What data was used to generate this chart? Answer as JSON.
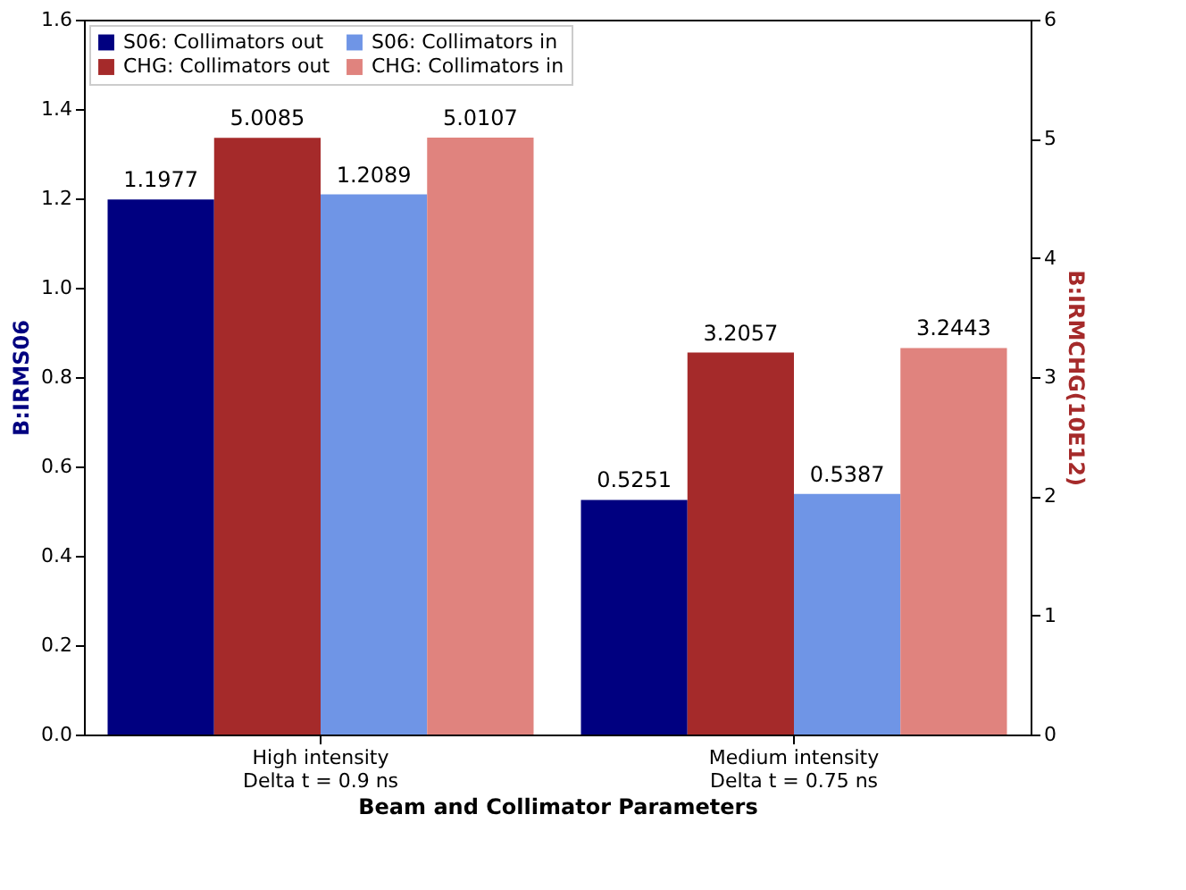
{
  "chart_data": {
    "type": "bar",
    "xlabel": "Beam and Collimator Parameters",
    "ylabel": "B:IRMS06",
    "y2label": "B:IRMCHG(10E12)",
    "categories": [
      "High intensity\nDelta t = 0.9 ns",
      "Medium intensity\nDelta t = 0.75 ns"
    ],
    "series": [
      {
        "name": "S06: Collimators out",
        "color": "#000080",
        "values": [
          1.1977,
          0.5251
        ]
      },
      {
        "name": "CHG: Collimators out",
        "color": "#a52a2a",
        "values": [
          5.0085,
          3.2057
        ],
        "axis": "y2"
      },
      {
        "name": "S06: Collimators in",
        "color": "#6f95e6",
        "values": [
          1.2089,
          0.5387
        ]
      },
      {
        "name": "CHG: Collimators in",
        "color": "#e0837e",
        "values": [
          5.0107,
          3.2443
        ],
        "axis": "y2"
      }
    ],
    "ylim": [
      0,
      1.6
    ],
    "yticks": [
      {
        "value": 0,
        "label": "0.0"
      },
      {
        "value": 0.2,
        "label": "0.2"
      },
      {
        "value": 0.4,
        "label": "0.4"
      },
      {
        "value": 0.6,
        "label": "0.6"
      },
      {
        "value": 0.8,
        "label": "0.8"
      },
      {
        "value": 1.0,
        "label": "1.0"
      },
      {
        "value": 1.2,
        "label": "1.2"
      },
      {
        "value": 1.4,
        "label": "1.4"
      },
      {
        "value": 1.6,
        "label": "1.6"
      }
    ],
    "y2lim": [
      0,
      6
    ],
    "y2ticks": [
      0,
      1,
      2,
      3,
      4,
      5,
      6
    ],
    "grid": false,
    "legend": "top left",
    "data_labels": true
  }
}
